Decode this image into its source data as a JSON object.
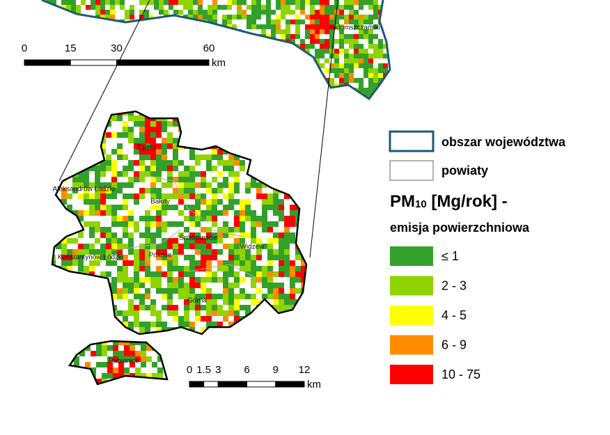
{
  "legend": {
    "region_boundary": "obszar województwa",
    "county_boundary": "powiaty",
    "title_main": "PM",
    "title_sub": "10",
    "title_rest": " [Mg/rok] -",
    "subtitle": "emisja powierzchniowa",
    "classes": [
      {
        "label": "≤ 1",
        "color": "#33a02c"
      },
      {
        "label": "2 - 3",
        "color": "#8fd400"
      },
      {
        "label": "4 - 5",
        "color": "#ffff00"
      },
      {
        "label": "6 - 9",
        "color": "#ff8c00"
      },
      {
        "label": "10 - 75",
        "color": "#ff0000"
      }
    ]
  },
  "places": [
    "Zgierz",
    "Aleksandrów Łódzki",
    "Bałuty",
    "Śródmieście",
    "Widzew",
    "Konstantynów Łódzki",
    "Polesie",
    "Górna",
    "Pabianice",
    "radomszczański"
  ],
  "scale_top": {
    "ticks": [
      0,
      15,
      30,
      60
    ],
    "unit": "km"
  },
  "scale_bottom": {
    "ticks": [
      0,
      1.5,
      3,
      6,
      9,
      12
    ],
    "unit": "km"
  }
}
